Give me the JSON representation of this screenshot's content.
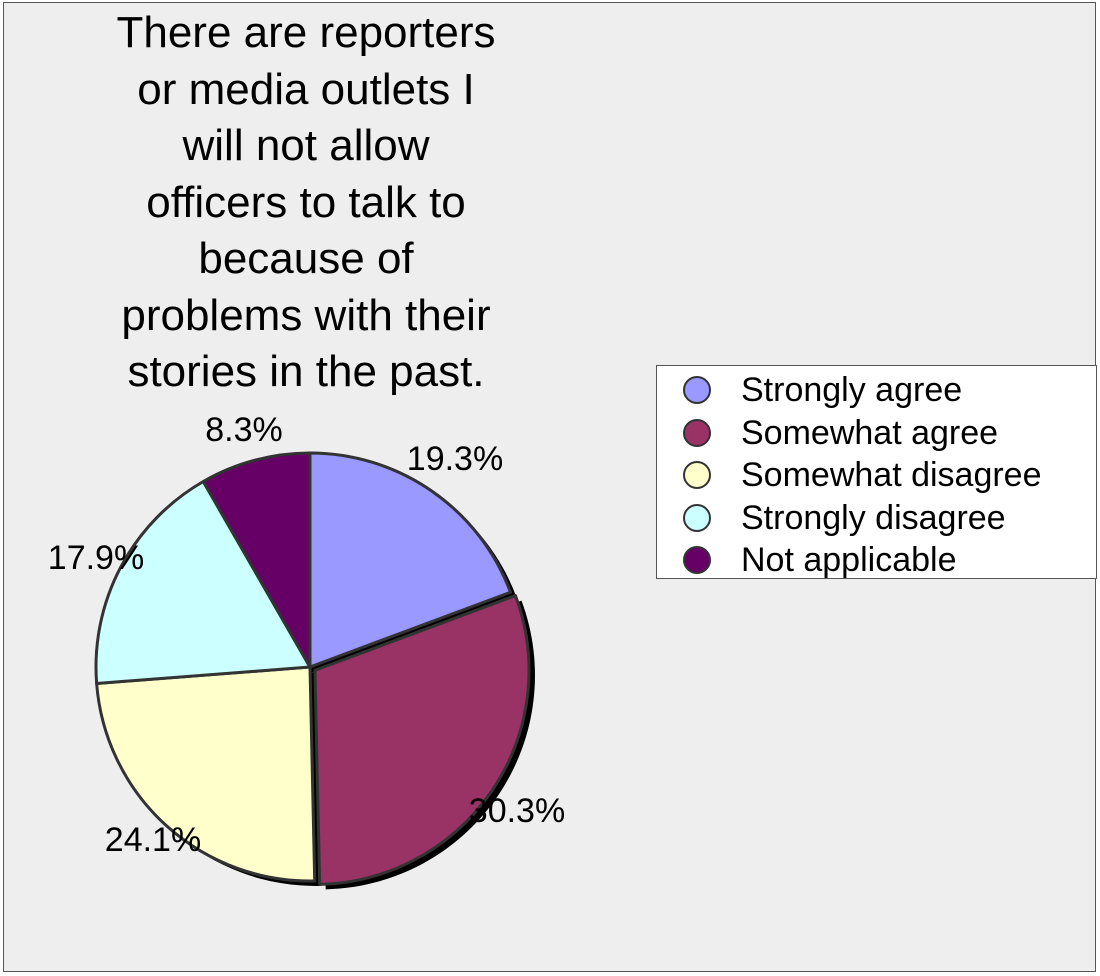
{
  "chart_data": {
    "type": "pie",
    "title": "There are reporters or media outlets I will not allow officers to talk to because of problems with their stories in the past.",
    "title_lines": [
      "There are reporters",
      "or media outlets I",
      "will not allow",
      "officers to talk to",
      "because of",
      "problems with their",
      "stories in the past."
    ],
    "legend_position": "right",
    "slices": [
      {
        "label": "Strongly agree",
        "value": 19.3,
        "value_label": "19.3%",
        "color": "#9999ff"
      },
      {
        "label": "Somewhat agree",
        "value": 30.3,
        "value_label": "30.3%",
        "color": "#993366",
        "exploded": true
      },
      {
        "label": "Somewhat disagree",
        "value": 24.1,
        "value_label": "24.1%",
        "color": "#ffffcc"
      },
      {
        "label": "Strongly disagree",
        "value": 17.9,
        "value_label": "17.9%",
        "color": "#ccffff"
      },
      {
        "label": "Not applicable",
        "value": 8.3,
        "value_label": "8.3%",
        "color": "#660066"
      }
    ]
  },
  "colors": {
    "background": "#eeeeee",
    "outline": "#333333"
  }
}
